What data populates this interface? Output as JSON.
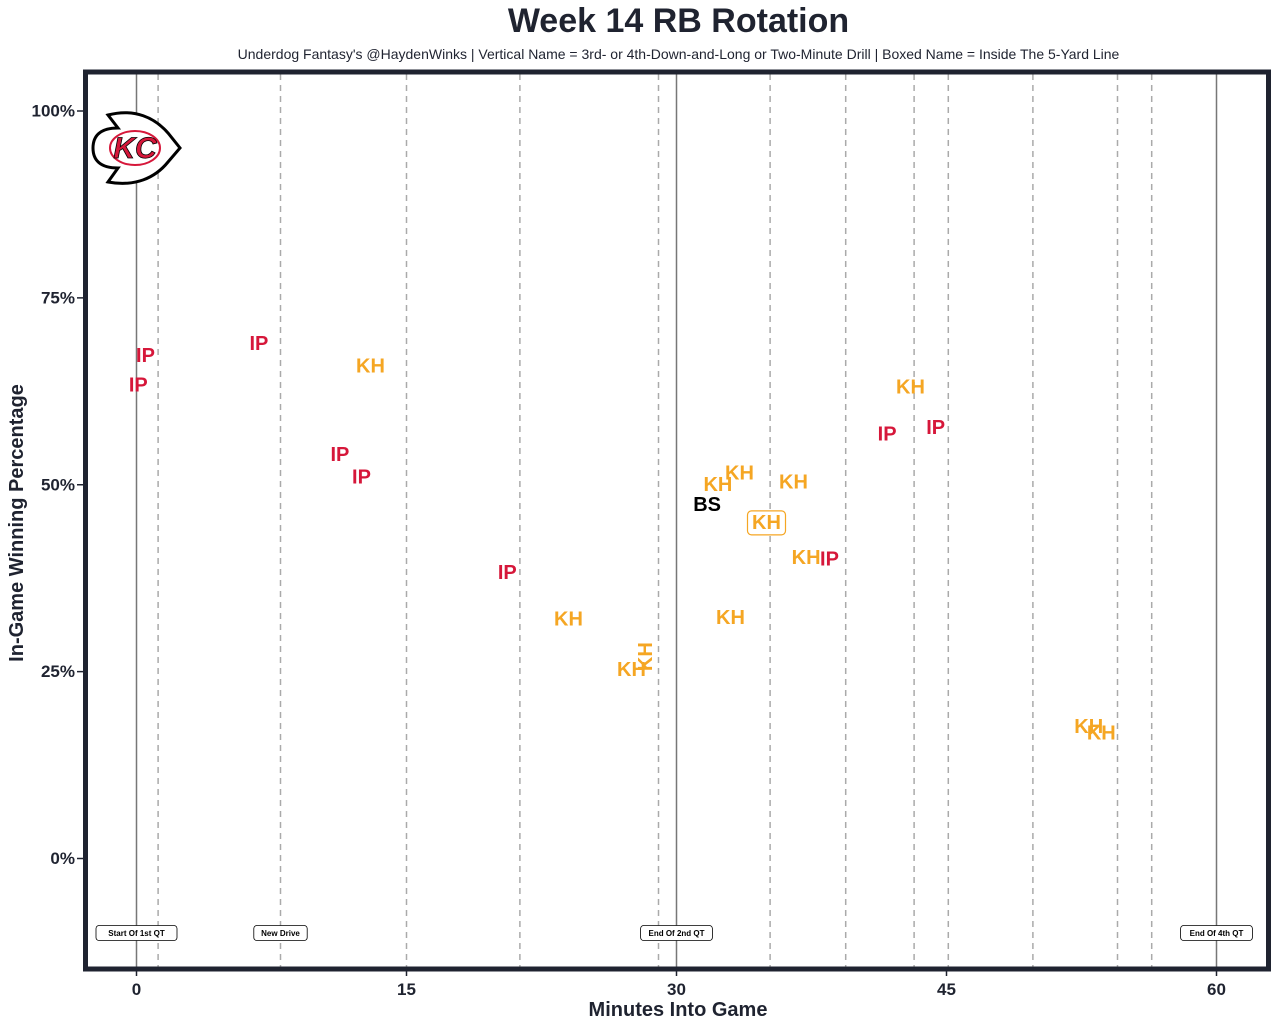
{
  "title": "Week 14 RB Rotation",
  "subtitle": "Underdog Fantasy's @HaydenWinks | Vertical Name = 3rd- or 4th-Down-and-Long or Two-Minute Drill | Boxed Name = Inside The 5-Yard Line",
  "logo": {
    "team": "Kansas City Chiefs",
    "text": "KC",
    "icon": "chiefs-arrowhead-logo"
  },
  "colors": {
    "IP": "#d6173a",
    "KH": "#f5a623",
    "BS": "#000000",
    "frame": "#1f2330",
    "grid": "#aaaaaa",
    "quarter_line": "#777777"
  },
  "chart_data": {
    "type": "scatter",
    "title": "Week 14 RB Rotation",
    "xlabel": "Minutes Into Game",
    "ylabel": "In-Game Winning Percentage",
    "xlim": [
      -2.5,
      63
    ],
    "ylim": [
      -15,
      105
    ],
    "xticks": [
      0,
      15,
      30,
      45,
      60
    ],
    "xtick_labels": [
      "0",
      "15",
      "30",
      "45",
      "60"
    ],
    "yticks": [
      0,
      25,
      50,
      75,
      100
    ],
    "ytick_labels": [
      "0%",
      "25%",
      "50%",
      "75%",
      "100%"
    ],
    "quarter_lines": [
      0,
      30,
      60
    ],
    "drive_lines": [
      1.2,
      8.0,
      15.0,
      21.3,
      29.0,
      35.2,
      39.4,
      43.2,
      45.1,
      49.8,
      54.5,
      56.4
    ],
    "annotations": [
      {
        "x": 0,
        "label": "Start Of 1st QT"
      },
      {
        "x": 8.0,
        "label": "New Drive"
      },
      {
        "x": 30,
        "label": "End Of 2nd QT"
      },
      {
        "x": 60,
        "label": "End Of 4th QT"
      }
    ],
    "points": [
      {
        "name": "IP",
        "x": 0.5,
        "y": 67.2,
        "style": "normal"
      },
      {
        "name": "IP",
        "x": 0.1,
        "y": 63.3,
        "style": "normal"
      },
      {
        "name": "IP",
        "x": 6.8,
        "y": 68.8,
        "style": "normal"
      },
      {
        "name": "KH",
        "x": 13.0,
        "y": 65.8,
        "style": "normal"
      },
      {
        "name": "IP",
        "x": 11.3,
        "y": 54.0,
        "style": "normal"
      },
      {
        "name": "IP",
        "x": 12.5,
        "y": 51.0,
        "style": "normal"
      },
      {
        "name": "IP",
        "x": 20.6,
        "y": 38.2,
        "style": "normal"
      },
      {
        "name": "KH",
        "x": 24.0,
        "y": 32.0,
        "style": "normal"
      },
      {
        "name": "KH",
        "x": 27.5,
        "y": 25.2,
        "style": "normal"
      },
      {
        "name": "KH",
        "x": 28.3,
        "y": 27.0,
        "style": "vertical"
      },
      {
        "name": "KH",
        "x": 32.3,
        "y": 50.0,
        "style": "normal"
      },
      {
        "name": "KH",
        "x": 33.5,
        "y": 51.5,
        "style": "normal"
      },
      {
        "name": "BS",
        "x": 31.7,
        "y": 47.3,
        "style": "normal"
      },
      {
        "name": "KH",
        "x": 36.5,
        "y": 50.3,
        "style": "normal"
      },
      {
        "name": "KH",
        "x": 35.0,
        "y": 44.9,
        "style": "boxed"
      },
      {
        "name": "KH",
        "x": 37.2,
        "y": 40.2,
        "style": "normal"
      },
      {
        "name": "IP",
        "x": 38.5,
        "y": 40.0,
        "style": "normal"
      },
      {
        "name": "KH",
        "x": 33.0,
        "y": 32.2,
        "style": "normal"
      },
      {
        "name": "KH",
        "x": 43.0,
        "y": 63.0,
        "style": "normal"
      },
      {
        "name": "IP",
        "x": 41.7,
        "y": 56.7,
        "style": "normal"
      },
      {
        "name": "IP",
        "x": 44.4,
        "y": 57.6,
        "style": "normal"
      },
      {
        "name": "KH",
        "x": 52.9,
        "y": 17.6,
        "style": "normal"
      },
      {
        "name": "KH",
        "x": 53.6,
        "y": 16.7,
        "style": "normal"
      }
    ]
  }
}
